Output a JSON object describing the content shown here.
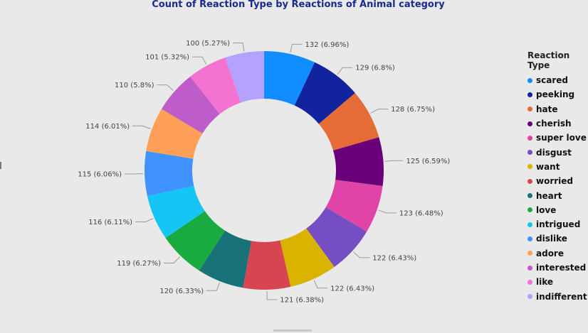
{
  "chart_data": {
    "type": "pie",
    "title": "Count of Reaction Type by Reactions of Animal category",
    "legend_title": "Reaction Type",
    "legend_position": "right",
    "donut": true,
    "slices": [
      {
        "label": "scared",
        "value": 132,
        "display": "132 (6.96%)",
        "color": "#118dff"
      },
      {
        "label": "peeking",
        "value": 129,
        "display": "129 (6.8%)",
        "color": "#12239e"
      },
      {
        "label": "hate",
        "value": 128,
        "display": "128 (6.75%)",
        "color": "#e66c37"
      },
      {
        "label": "cherish",
        "value": 125,
        "display": "125 (6.59%)",
        "color": "#6b007b"
      },
      {
        "label": "super love",
        "value": 123,
        "display": "123 (6.48%)",
        "color": "#e044a7"
      },
      {
        "label": "disgust",
        "value": 122,
        "display": "122 (6.43%)",
        "color": "#744ec2"
      },
      {
        "label": "want",
        "value": 122,
        "display": "122 (6.43%)",
        "color": "#d9b300"
      },
      {
        "label": "worried",
        "value": 121,
        "display": "121 (6.38%)",
        "color": "#d64550"
      },
      {
        "label": "heart",
        "value": 120,
        "display": "120 (6.33%)",
        "color": "#197278"
      },
      {
        "label": "love",
        "value": 119,
        "display": "119 (6.27%)",
        "color": "#1aab40"
      },
      {
        "label": "intrigued",
        "value": 116,
        "display": "116 (6.11%)",
        "color": "#15c6f4"
      },
      {
        "label": "dislike",
        "value": 115,
        "display": "115 (6.06%)",
        "color": "#4092ff"
      },
      {
        "label": "adore",
        "value": 114,
        "display": "114 (6.01%)",
        "color": "#ffa058"
      },
      {
        "label": "interested",
        "value": 110,
        "display": "110 (5.8%)",
        "color": "#be5dc9"
      },
      {
        "label": "like",
        "value": 101,
        "display": "101 (5.32%)",
        "color": "#f472d0"
      },
      {
        "label": "indifferent",
        "value": 100,
        "display": "100 (5.27%)",
        "color": "#b5a1ff"
      }
    ]
  }
}
